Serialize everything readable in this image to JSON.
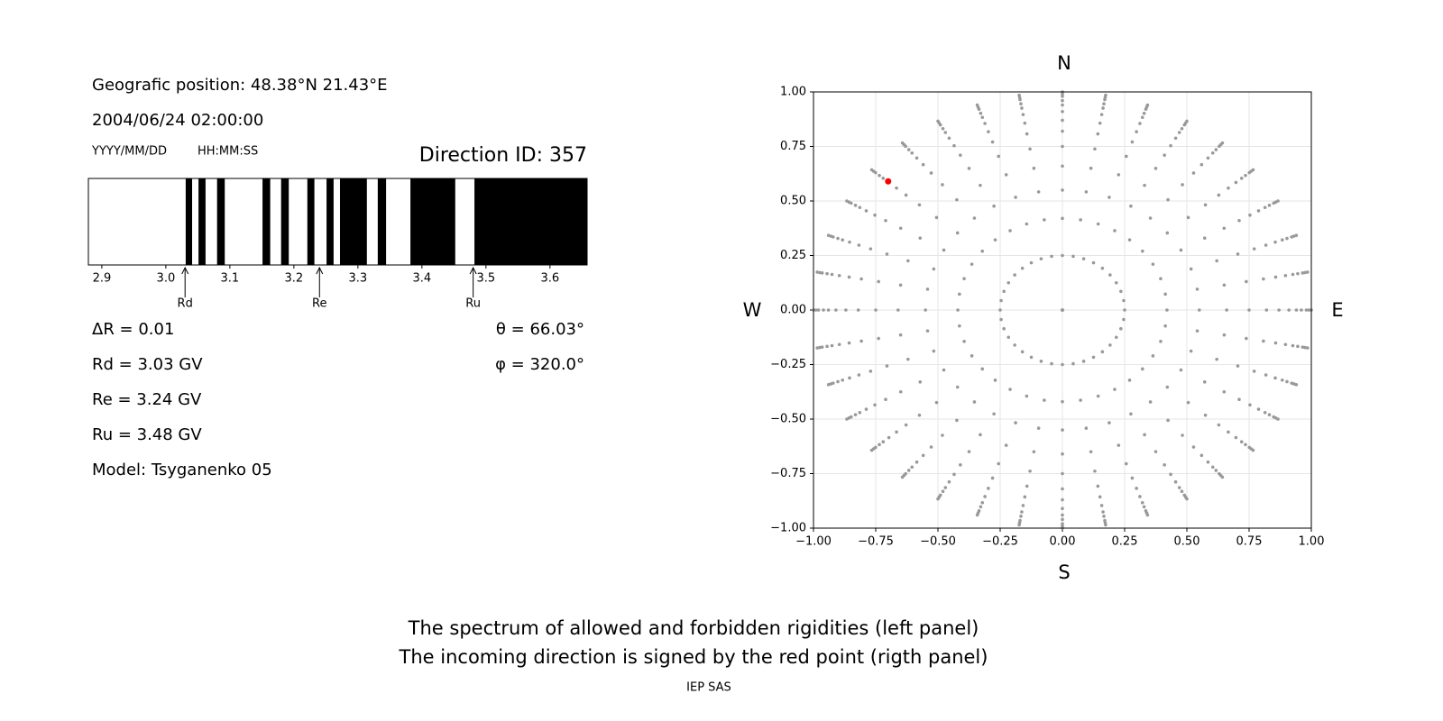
{
  "info": {
    "position": "Geografic position: 48.38°N 21.43°E",
    "datetime": "2004/06/24 02:00:00",
    "date_format": "YYYY/MM/DD",
    "time_format": "HH:MM:SS",
    "lines_left": [
      "ΔR = 0.01",
      "Rd = 3.03 GV",
      "Re = 3.24 GV",
      "Ru = 3.48 GV",
      "Model: Tsyganenko 05"
    ],
    "lines_right": [
      "θ = 66.03°",
      "φ = 320.0°"
    ]
  },
  "chart_data": [
    {
      "type": "spectrum",
      "title": "Direction ID: 357",
      "xlim": [
        2.879,
        3.658
      ],
      "xticks": [
        2.9,
        {
          "value": 3,
          "label": "3.0"
        },
        3.1,
        3.2,
        3.3,
        3.4,
        3.5,
        3.6
      ],
      "forbidden": [
        [
          3.031,
          3.041
        ],
        [
          3.051,
          3.062
        ],
        [
          3.08,
          3.092
        ],
        [
          3.151,
          3.163
        ],
        [
          3.18,
          3.192
        ],
        [
          3.221,
          3.232
        ],
        [
          3.251,
          3.262
        ],
        [
          3.272,
          3.314
        ],
        [
          3.331,
          3.344
        ],
        [
          3.382,
          3.452
        ],
        [
          3.482,
          3.658
        ]
      ],
      "color": "#000000",
      "markers": [
        {
          "label": "Rd",
          "value": 3.03
        },
        {
          "label": "Re",
          "value": 3.24
        },
        {
          "label": "Ru",
          "value": 3.48
        }
      ]
    },
    {
      "type": "polar-scatter",
      "xlim": [
        -1,
        1
      ],
      "ylim": [
        -1,
        1
      ],
      "xticks": [
        {
          "value": -1,
          "label": "−1.00"
        },
        {
          "value": -0.75,
          "label": "−0.75"
        },
        {
          "value": -0.5,
          "label": "−0.50"
        },
        {
          "value": -0.25,
          "label": "−0.25"
        },
        {
          "value": 0,
          "label": "0.00"
        },
        0.25,
        {
          "value": 0.5,
          "label": "0.50"
        },
        0.75,
        {
          "value": 1,
          "label": "1.00"
        }
      ],
      "yticks": [
        {
          "value": -1,
          "label": "−1.00"
        },
        {
          "value": -0.75,
          "label": "−0.75"
        },
        {
          "value": -0.5,
          "label": "−0.50"
        },
        {
          "value": -0.25,
          "label": "−0.25"
        },
        {
          "value": 0,
          "label": "0.00"
        },
        0.25,
        {
          "value": 0.5,
          "label": "0.50"
        },
        0.75,
        {
          "value": 1,
          "label": "1.00"
        }
      ],
      "grid": true,
      "angles": [
        0,
        10,
        20,
        30,
        40,
        50,
        60,
        70,
        80,
        90,
        100,
        110,
        120,
        130,
        140,
        150,
        160,
        170,
        180,
        190,
        200,
        210,
        220,
        230,
        240,
        250,
        260,
        270,
        280,
        290,
        300,
        310,
        320,
        330,
        340,
        350
      ],
      "radii": [
        0,
        0.25,
        0.42,
        0.55,
        0.66,
        0.75,
        0.82,
        0.87,
        0.91,
        0.94,
        0.96,
        0.98,
        0.99,
        1.0
      ],
      "color": "#999999",
      "highlight": {
        "x": -0.7,
        "y": 0.59,
        "color": "#ff0000"
      },
      "compass": {
        "N": "N",
        "S": "S",
        "W": "W",
        "E": "E"
      }
    }
  ],
  "footer": {
    "captions": [
      "The spectrum of allowed and forbidden rigidities (left panel)",
      "The incoming direction is signed by the red point (rigth panel)"
    ],
    "credit": "IEP SAS"
  }
}
